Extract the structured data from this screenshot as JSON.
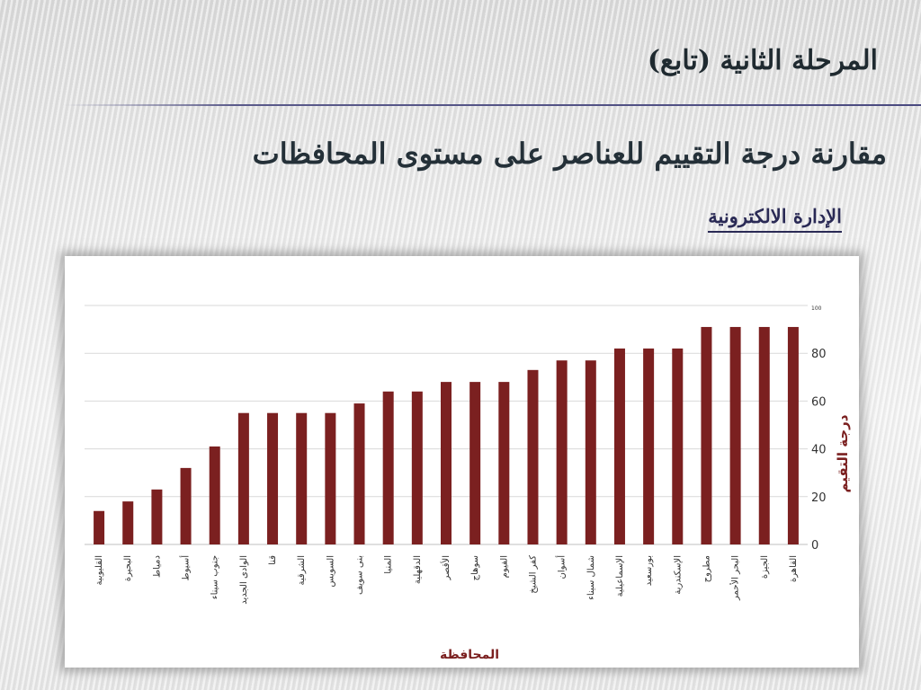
{
  "slide": {
    "title": "المرحلة الثانية (تابع)",
    "subtitle": "مقارنة درجة التقييم للعناصر على مستوى المحافظات",
    "section_label": "الإدارة الالكترونية"
  },
  "colors": {
    "bar": "#7b2020",
    "grid": "#d9d9d9",
    "axis_text": "#333333",
    "label_text": "#7b2020"
  },
  "chart_data": {
    "type": "bar",
    "title": "",
    "xlabel": "المحافظة",
    "ylabel": "درجة التقيم",
    "ylim": [
      0,
      100
    ],
    "yticks": [
      "0",
      "20",
      "40",
      "60",
      "80",
      "100"
    ],
    "grid": true,
    "axis_side": "right",
    "categories": [
      "القليوبية",
      "البحيرة",
      "دمياط",
      "أسيوط",
      "جنوب سيناء",
      "الوادى الجديد",
      "قنا",
      "الشرقية",
      "السويس",
      "بنى سويف",
      "المنيا",
      "الدقهلية",
      "الأقصر",
      "سوهاج",
      "الفيوم",
      "كفر الشيخ",
      "أسوان",
      "شمال سيناء",
      "الإسماعيلية",
      "بورسعيد",
      "الإسكندرية",
      "مطروح",
      "البحر الأحمر",
      "الجيزة",
      "القاهرة"
    ],
    "values": [
      14,
      18,
      23,
      32,
      41,
      55,
      55,
      55,
      55,
      59,
      64,
      64,
      68,
      68,
      68,
      73,
      77,
      77,
      82,
      82,
      82,
      91,
      91,
      91,
      91
    ]
  }
}
